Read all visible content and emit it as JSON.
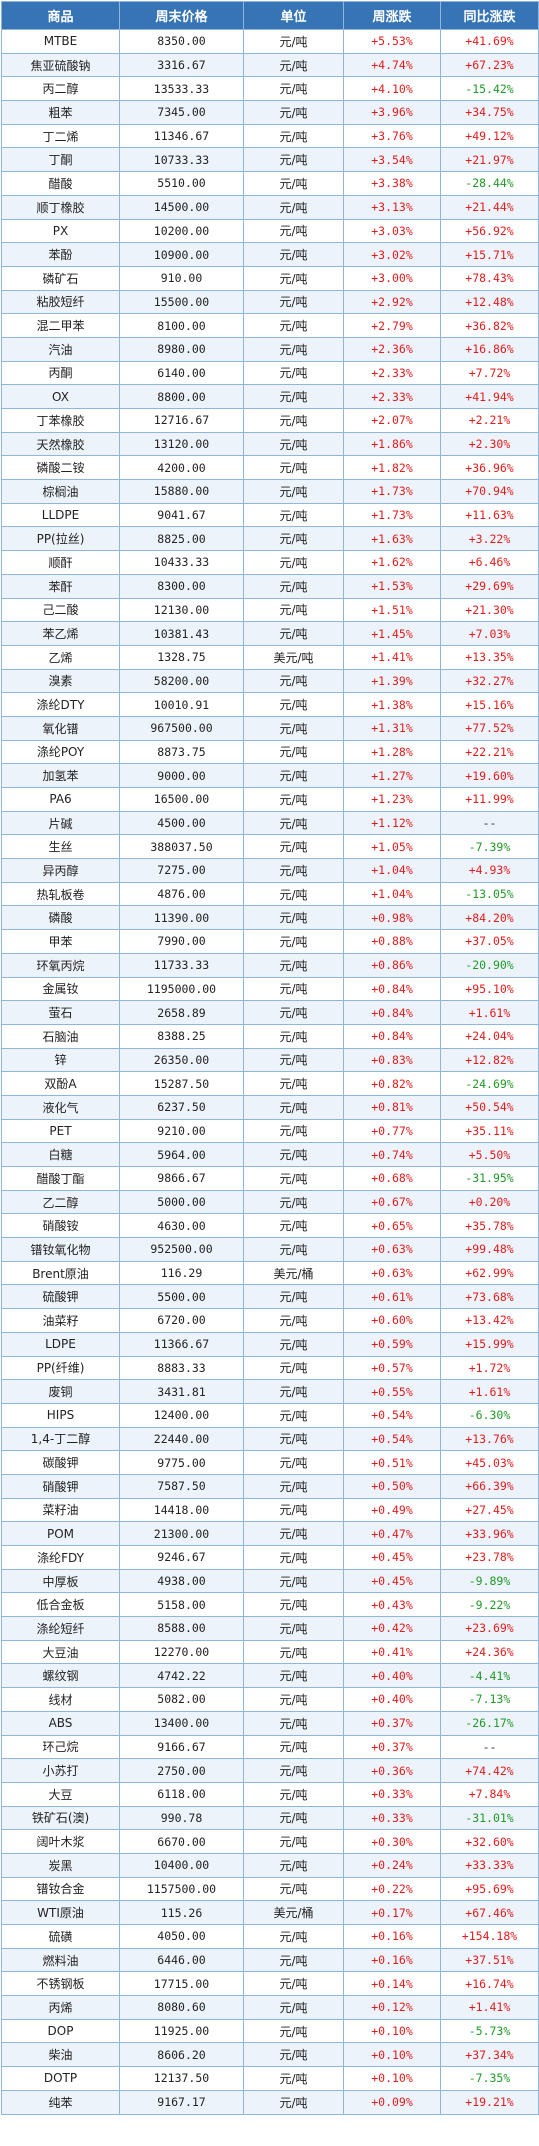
{
  "headers": [
    "商品",
    "周末价格",
    "单位",
    "周涨跌",
    "同比涨跌"
  ],
  "colors": {
    "header_bg": "#3774b6",
    "up": "#e41b1b",
    "down": "#1f9a26"
  },
  "rows": [
    [
      "MTBE",
      "8350.00",
      "元/吨",
      "+5.53%",
      "+41.69%"
    ],
    [
      "焦亚硫酸钠",
      "3316.67",
      "元/吨",
      "+4.74%",
      "+67.23%"
    ],
    [
      "丙二醇",
      "13533.33",
      "元/吨",
      "+4.10%",
      "-15.42%"
    ],
    [
      "粗苯",
      "7345.00",
      "元/吨",
      "+3.96%",
      "+34.75%"
    ],
    [
      "丁二烯",
      "11346.67",
      "元/吨",
      "+3.76%",
      "+49.12%"
    ],
    [
      "丁酮",
      "10733.33",
      "元/吨",
      "+3.54%",
      "+21.97%"
    ],
    [
      "醋酸",
      "5510.00",
      "元/吨",
      "+3.38%",
      "-28.44%"
    ],
    [
      "顺丁橡胶",
      "14500.00",
      "元/吨",
      "+3.13%",
      "+21.44%"
    ],
    [
      "PX",
      "10200.00",
      "元/吨",
      "+3.03%",
      "+56.92%"
    ],
    [
      "苯酚",
      "10900.00",
      "元/吨",
      "+3.02%",
      "+15.71%"
    ],
    [
      "磷矿石",
      "910.00",
      "元/吨",
      "+3.00%",
      "+78.43%"
    ],
    [
      "粘胶短纤",
      "15500.00",
      "元/吨",
      "+2.92%",
      "+12.48%"
    ],
    [
      "混二甲苯",
      "8100.00",
      "元/吨",
      "+2.79%",
      "+36.82%"
    ],
    [
      "汽油",
      "8980.00",
      "元/吨",
      "+2.36%",
      "+16.86%"
    ],
    [
      "丙酮",
      "6140.00",
      "元/吨",
      "+2.33%",
      "+7.72%"
    ],
    [
      "OX",
      "8800.00",
      "元/吨",
      "+2.33%",
      "+41.94%"
    ],
    [
      "丁苯橡胶",
      "12716.67",
      "元/吨",
      "+2.07%",
      "+2.21%"
    ],
    [
      "天然橡胶",
      "13120.00",
      "元/吨",
      "+1.86%",
      "+2.30%"
    ],
    [
      "磷酸二铵",
      "4200.00",
      "元/吨",
      "+1.82%",
      "+36.96%"
    ],
    [
      "棕榈油",
      "15880.00",
      "元/吨",
      "+1.73%",
      "+70.94%"
    ],
    [
      "LLDPE",
      "9041.67",
      "元/吨",
      "+1.73%",
      "+11.63%"
    ],
    [
      "PP(拉丝)",
      "8825.00",
      "元/吨",
      "+1.63%",
      "+3.22%"
    ],
    [
      "顺酐",
      "10433.33",
      "元/吨",
      "+1.62%",
      "+6.46%"
    ],
    [
      "苯酐",
      "8300.00",
      "元/吨",
      "+1.53%",
      "+29.69%"
    ],
    [
      "己二酸",
      "12130.00",
      "元/吨",
      "+1.51%",
      "+21.30%"
    ],
    [
      "苯乙烯",
      "10381.43",
      "元/吨",
      "+1.45%",
      "+7.03%"
    ],
    [
      "乙烯",
      "1328.75",
      "美元/吨",
      "+1.41%",
      "+13.35%"
    ],
    [
      "溴素",
      "58200.00",
      "元/吨",
      "+1.39%",
      "+32.27%"
    ],
    [
      "涤纶DTY",
      "10010.91",
      "元/吨",
      "+1.38%",
      "+15.16%"
    ],
    [
      "氧化镨",
      "967500.00",
      "元/吨",
      "+1.31%",
      "+77.52%"
    ],
    [
      "涤纶POY",
      "8873.75",
      "元/吨",
      "+1.28%",
      "+22.21%"
    ],
    [
      "加氢苯",
      "9000.00",
      "元/吨",
      "+1.27%",
      "+19.60%"
    ],
    [
      "PA6",
      "16500.00",
      "元/吨",
      "+1.23%",
      "+11.99%"
    ],
    [
      "片碱",
      "4500.00",
      "元/吨",
      "+1.12%",
      "--"
    ],
    [
      "生丝",
      "388037.50",
      "元/吨",
      "+1.05%",
      "-7.39%"
    ],
    [
      "异丙醇",
      "7275.00",
      "元/吨",
      "+1.04%",
      "+4.93%"
    ],
    [
      "热轧板卷",
      "4876.00",
      "元/吨",
      "+1.04%",
      "-13.05%"
    ],
    [
      "磷酸",
      "11390.00",
      "元/吨",
      "+0.98%",
      "+84.20%"
    ],
    [
      "甲苯",
      "7990.00",
      "元/吨",
      "+0.88%",
      "+37.05%"
    ],
    [
      "环氧丙烷",
      "11733.33",
      "元/吨",
      "+0.86%",
      "-20.90%"
    ],
    [
      "金属钕",
      "1195000.00",
      "元/吨",
      "+0.84%",
      "+95.10%"
    ],
    [
      "萤石",
      "2658.89",
      "元/吨",
      "+0.84%",
      "+1.61%"
    ],
    [
      "石脑油",
      "8388.25",
      "元/吨",
      "+0.84%",
      "+24.04%"
    ],
    [
      "锌",
      "26350.00",
      "元/吨",
      "+0.83%",
      "+12.82%"
    ],
    [
      "双酚A",
      "15287.50",
      "元/吨",
      "+0.82%",
      "-24.69%"
    ],
    [
      "液化气",
      "6237.50",
      "元/吨",
      "+0.81%",
      "+50.54%"
    ],
    [
      "PET",
      "9210.00",
      "元/吨",
      "+0.77%",
      "+35.11%"
    ],
    [
      "白糖",
      "5964.00",
      "元/吨",
      "+0.74%",
      "+5.50%"
    ],
    [
      "醋酸丁酯",
      "9866.67",
      "元/吨",
      "+0.68%",
      "-31.95%"
    ],
    [
      "乙二醇",
      "5000.00",
      "元/吨",
      "+0.67%",
      "+0.20%"
    ],
    [
      "硝酸铵",
      "4630.00",
      "元/吨",
      "+0.65%",
      "+35.78%"
    ],
    [
      "镨钕氧化物",
      "952500.00",
      "元/吨",
      "+0.63%",
      "+99.48%"
    ],
    [
      "Brent原油",
      "116.29",
      "美元/桶",
      "+0.63%",
      "+62.99%"
    ],
    [
      "硫酸钾",
      "5500.00",
      "元/吨",
      "+0.61%",
      "+73.68%"
    ],
    [
      "油菜籽",
      "6720.00",
      "元/吨",
      "+0.60%",
      "+13.42%"
    ],
    [
      "LDPE",
      "11366.67",
      "元/吨",
      "+0.59%",
      "+15.99%"
    ],
    [
      "PP(纤维)",
      "8883.33",
      "元/吨",
      "+0.57%",
      "+1.72%"
    ],
    [
      "废铜",
      "3431.81",
      "元/吨",
      "+0.55%",
      "+1.61%"
    ],
    [
      "HIPS",
      "12400.00",
      "元/吨",
      "+0.54%",
      "-6.30%"
    ],
    [
      "1,4-丁二醇",
      "22440.00",
      "元/吨",
      "+0.54%",
      "+13.76%"
    ],
    [
      "碳酸钾",
      "9775.00",
      "元/吨",
      "+0.51%",
      "+45.03%"
    ],
    [
      "硝酸钾",
      "7587.50",
      "元/吨",
      "+0.50%",
      "+66.39%"
    ],
    [
      "菜籽油",
      "14418.00",
      "元/吨",
      "+0.49%",
      "+27.45%"
    ],
    [
      "POM",
      "21300.00",
      "元/吨",
      "+0.47%",
      "+33.96%"
    ],
    [
      "涤纶FDY",
      "9246.67",
      "元/吨",
      "+0.45%",
      "+23.78%"
    ],
    [
      "中厚板",
      "4938.00",
      "元/吨",
      "+0.45%",
      "-9.89%"
    ],
    [
      "低合金板",
      "5158.00",
      "元/吨",
      "+0.43%",
      "-9.22%"
    ],
    [
      "涤纶短纤",
      "8588.00",
      "元/吨",
      "+0.42%",
      "+23.69%"
    ],
    [
      "大豆油",
      "12270.00",
      "元/吨",
      "+0.41%",
      "+24.36%"
    ],
    [
      "螺纹钢",
      "4742.22",
      "元/吨",
      "+0.40%",
      "-4.41%"
    ],
    [
      "线材",
      "5082.00",
      "元/吨",
      "+0.40%",
      "-7.13%"
    ],
    [
      "ABS",
      "13400.00",
      "元/吨",
      "+0.37%",
      "-26.17%"
    ],
    [
      "环己烷",
      "9166.67",
      "元/吨",
      "+0.37%",
      "--"
    ],
    [
      "小苏打",
      "2750.00",
      "元/吨",
      "+0.36%",
      "+74.42%"
    ],
    [
      "大豆",
      "6118.00",
      "元/吨",
      "+0.33%",
      "+7.84%"
    ],
    [
      "铁矿石(澳)",
      "990.78",
      "元/吨",
      "+0.33%",
      "-31.01%"
    ],
    [
      "阔叶木浆",
      "6670.00",
      "元/吨",
      "+0.30%",
      "+32.60%"
    ],
    [
      "炭黑",
      "10400.00",
      "元/吨",
      "+0.24%",
      "+33.33%"
    ],
    [
      "镨钕合金",
      "1157500.00",
      "元/吨",
      "+0.22%",
      "+95.69%"
    ],
    [
      "WTI原油",
      "115.26",
      "美元/桶",
      "+0.17%",
      "+67.46%"
    ],
    [
      "硫磺",
      "4050.00",
      "元/吨",
      "+0.16%",
      "+154.18%"
    ],
    [
      "燃料油",
      "6446.00",
      "元/吨",
      "+0.16%",
      "+37.51%"
    ],
    [
      "不锈钢板",
      "17715.00",
      "元/吨",
      "+0.14%",
      "+16.74%"
    ],
    [
      "丙烯",
      "8080.60",
      "元/吨",
      "+0.12%",
      "+1.41%"
    ],
    [
      "DOP",
      "11925.00",
      "元/吨",
      "+0.10%",
      "-5.73%"
    ],
    [
      "柴油",
      "8606.20",
      "元/吨",
      "+0.10%",
      "+37.34%"
    ],
    [
      "DOTP",
      "12137.50",
      "元/吨",
      "+0.10%",
      "-7.35%"
    ],
    [
      "纯苯",
      "9167.17",
      "元/吨",
      "+0.09%",
      "+19.21%"
    ]
  ]
}
